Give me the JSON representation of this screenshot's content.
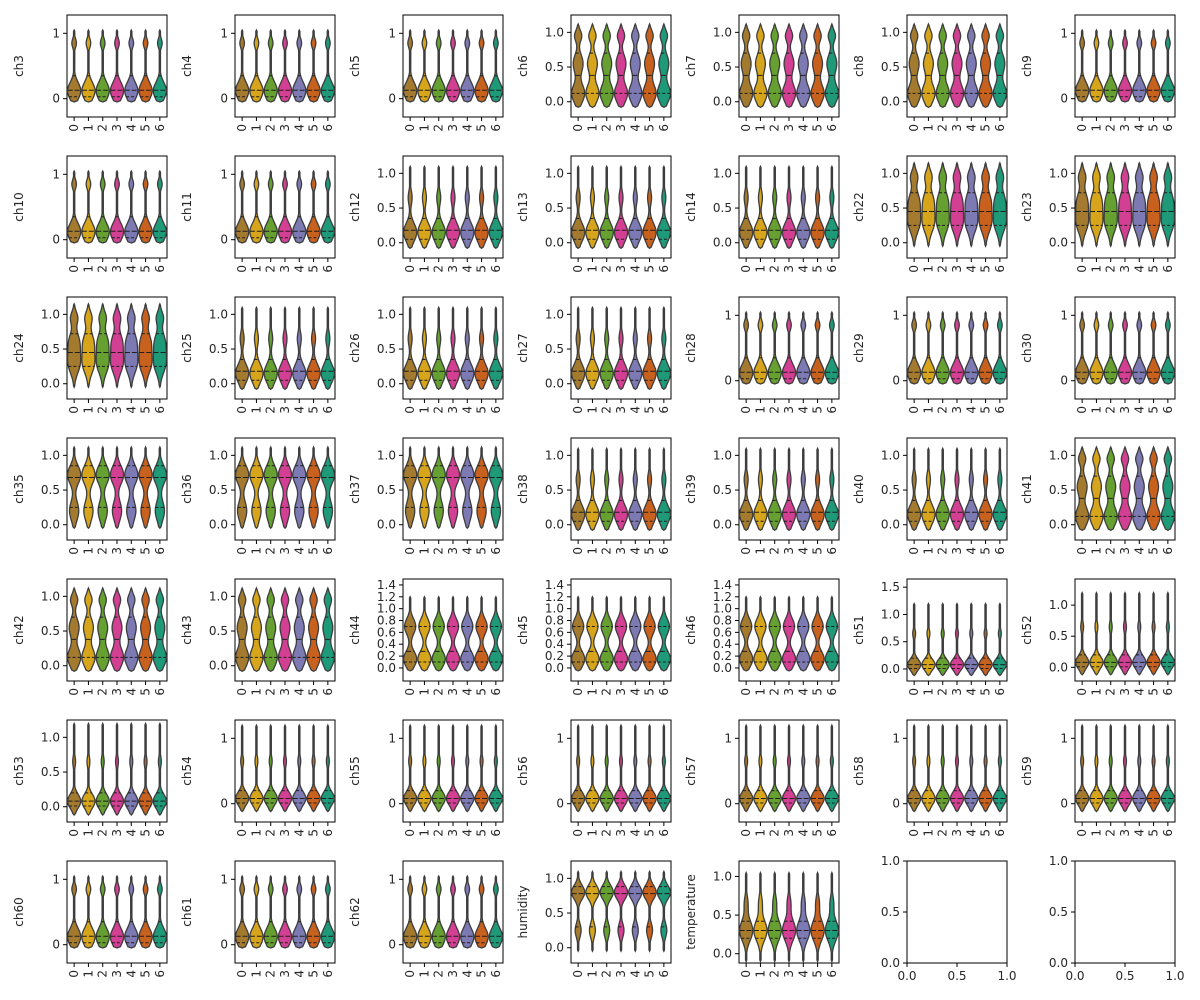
{
  "figure_size": [
    1200,
    1000
  ],
  "palette": [
    "#a47a2e",
    "#d6a51c",
    "#66a030",
    "#d33f92",
    "#7c79b3",
    "#c7611d",
    "#1f9a79"
  ],
  "chart_data": {
    "type": "violin",
    "layout": {
      "rows": 7,
      "cols": 7
    },
    "categories": [
      "0",
      "1",
      "2",
      "3",
      "4",
      "5",
      "6"
    ],
    "panels": [
      {
        "ylabel": "ch3",
        "ylim": [
          -0.28,
          1.28
        ],
        "yticks": [
          0,
          1
        ],
        "profile": "A"
      },
      {
        "ylabel": "ch4",
        "ylim": [
          -0.28,
          1.28
        ],
        "yticks": [
          0,
          1
        ],
        "profile": "A"
      },
      {
        "ylabel": "ch5",
        "ylim": [
          -0.28,
          1.28
        ],
        "yticks": [
          0,
          1
        ],
        "profile": "A"
      },
      {
        "ylabel": "ch6",
        "ylim": [
          -0.22,
          1.25
        ],
        "yticks": [
          0.0,
          0.5,
          1.0
        ],
        "profile": "B"
      },
      {
        "ylabel": "ch7",
        "ylim": [
          -0.22,
          1.25
        ],
        "yticks": [
          0.0,
          0.5,
          1.0
        ],
        "profile": "B"
      },
      {
        "ylabel": "ch8",
        "ylim": [
          -0.22,
          1.25
        ],
        "yticks": [
          0.0,
          0.5,
          1.0
        ],
        "profile": "B"
      },
      {
        "ylabel": "ch9",
        "ylim": [
          -0.28,
          1.28
        ],
        "yticks": [
          0,
          1
        ],
        "profile": "A"
      },
      {
        "ylabel": "ch10",
        "ylim": [
          -0.28,
          1.28
        ],
        "yticks": [
          0,
          1
        ],
        "profile": "A"
      },
      {
        "ylabel": "ch11",
        "ylim": [
          -0.28,
          1.28
        ],
        "yticks": [
          0,
          1
        ],
        "profile": "A"
      },
      {
        "ylabel": "ch12",
        "ylim": [
          -0.22,
          1.25
        ],
        "yticks": [
          0.0,
          0.5,
          1.0
        ],
        "profile": "C"
      },
      {
        "ylabel": "ch13",
        "ylim": [
          -0.22,
          1.25
        ],
        "yticks": [
          0.0,
          0.5,
          1.0
        ],
        "profile": "C"
      },
      {
        "ylabel": "ch14",
        "ylim": [
          -0.22,
          1.25
        ],
        "yticks": [
          0.0,
          0.5,
          1.0
        ],
        "profile": "C"
      },
      {
        "ylabel": "ch22",
        "ylim": [
          -0.22,
          1.25
        ],
        "yticks": [
          0.0,
          0.5,
          1.0
        ],
        "profile": "D"
      },
      {
        "ylabel": "ch23",
        "ylim": [
          -0.22,
          1.25
        ],
        "yticks": [
          0.0,
          0.5,
          1.0
        ],
        "profile": "D"
      },
      {
        "ylabel": "ch24",
        "ylim": [
          -0.22,
          1.25
        ],
        "yticks": [
          0.0,
          0.5,
          1.0
        ],
        "profile": "D"
      },
      {
        "ylabel": "ch25",
        "ylim": [
          -0.22,
          1.25
        ],
        "yticks": [
          0.0,
          0.5,
          1.0
        ],
        "profile": "C"
      },
      {
        "ylabel": "ch26",
        "ylim": [
          -0.22,
          1.25
        ],
        "yticks": [
          0.0,
          0.5,
          1.0
        ],
        "profile": "C"
      },
      {
        "ylabel": "ch27",
        "ylim": [
          -0.22,
          1.25
        ],
        "yticks": [
          0.0,
          0.5,
          1.0
        ],
        "profile": "C"
      },
      {
        "ylabel": "ch28",
        "ylim": [
          -0.28,
          1.28
        ],
        "yticks": [
          0,
          1
        ],
        "profile": "A"
      },
      {
        "ylabel": "ch29",
        "ylim": [
          -0.28,
          1.28
        ],
        "yticks": [
          0,
          1
        ],
        "profile": "A"
      },
      {
        "ylabel": "ch30",
        "ylim": [
          -0.28,
          1.28
        ],
        "yticks": [
          0,
          1
        ],
        "profile": "A"
      },
      {
        "ylabel": "ch35",
        "ylim": [
          -0.22,
          1.25
        ],
        "yticks": [
          0.0,
          0.5,
          1.0
        ],
        "profile": "E"
      },
      {
        "ylabel": "ch36",
        "ylim": [
          -0.22,
          1.25
        ],
        "yticks": [
          0.0,
          0.5,
          1.0
        ],
        "profile": "E"
      },
      {
        "ylabel": "ch37",
        "ylim": [
          -0.22,
          1.25
        ],
        "yticks": [
          0.0,
          0.5,
          1.0
        ],
        "profile": "E"
      },
      {
        "ylabel": "ch38",
        "ylim": [
          -0.22,
          1.25
        ],
        "yticks": [
          0.0,
          0.5,
          1.0
        ],
        "profile": "C"
      },
      {
        "ylabel": "ch39",
        "ylim": [
          -0.22,
          1.25
        ],
        "yticks": [
          0.0,
          0.5,
          1.0
        ],
        "profile": "C"
      },
      {
        "ylabel": "ch40",
        "ylim": [
          -0.22,
          1.25
        ],
        "yticks": [
          0.0,
          0.5,
          1.0
        ],
        "profile": "C"
      },
      {
        "ylabel": "ch41",
        "ylim": [
          -0.22,
          1.25
        ],
        "yticks": [
          0.0,
          0.5,
          1.0
        ],
        "profile": "B"
      },
      {
        "ylabel": "ch42",
        "ylim": [
          -0.22,
          1.25
        ],
        "yticks": [
          0.0,
          0.5,
          1.0
        ],
        "profile": "B"
      },
      {
        "ylabel": "ch43",
        "ylim": [
          -0.22,
          1.25
        ],
        "yticks": [
          0.0,
          0.5,
          1.0
        ],
        "profile": "B"
      },
      {
        "ylabel": "ch44",
        "ylim": [
          -0.22,
          1.5
        ],
        "yticks": [
          0.0,
          0.2,
          0.4,
          0.6,
          0.8,
          1.0,
          1.2,
          1.4
        ],
        "profile": "F"
      },
      {
        "ylabel": "ch45",
        "ylim": [
          -0.22,
          1.5
        ],
        "yticks": [
          0.0,
          0.2,
          0.4,
          0.6,
          0.8,
          1.0,
          1.2,
          1.4
        ],
        "profile": "F"
      },
      {
        "ylabel": "ch46",
        "ylim": [
          -0.22,
          1.5
        ],
        "yticks": [
          0.0,
          0.2,
          0.4,
          0.6,
          0.8,
          1.0,
          1.2,
          1.4
        ],
        "profile": "F"
      },
      {
        "ylabel": "ch51",
        "ylim": [
          -0.22,
          1.65
        ],
        "yticks": [
          0.0,
          0.5,
          1.0,
          1.5
        ],
        "profile": "G"
      },
      {
        "ylabel": "ch52",
        "ylim": [
          -0.22,
          1.42
        ],
        "yticks": [
          0.0,
          0.5,
          1.0
        ],
        "profile": "G"
      },
      {
        "ylabel": "ch53",
        "ylim": [
          -0.22,
          1.25
        ],
        "yticks": [
          0.0,
          0.5,
          1.0
        ],
        "profile": "G"
      },
      {
        "ylabel": "ch54",
        "ylim": [
          -0.28,
          1.28
        ],
        "yticks": [
          0,
          1
        ],
        "profile": "G"
      },
      {
        "ylabel": "ch55",
        "ylim": [
          -0.28,
          1.28
        ],
        "yticks": [
          0,
          1
        ],
        "profile": "G"
      },
      {
        "ylabel": "ch56",
        "ylim": [
          -0.28,
          1.28
        ],
        "yticks": [
          0,
          1
        ],
        "profile": "G"
      },
      {
        "ylabel": "ch57",
        "ylim": [
          -0.28,
          1.28
        ],
        "yticks": [
          0,
          1
        ],
        "profile": "G"
      },
      {
        "ylabel": "ch58",
        "ylim": [
          -0.28,
          1.28
        ],
        "yticks": [
          0,
          1
        ],
        "profile": "G"
      },
      {
        "ylabel": "ch59",
        "ylim": [
          -0.28,
          1.28
        ],
        "yticks": [
          0,
          1
        ],
        "profile": "G"
      },
      {
        "ylabel": "ch60",
        "ylim": [
          -0.28,
          1.28
        ],
        "yticks": [
          0,
          1
        ],
        "profile": "A"
      },
      {
        "ylabel": "ch61",
        "ylim": [
          -0.28,
          1.28
        ],
        "yticks": [
          0,
          1
        ],
        "profile": "A"
      },
      {
        "ylabel": "ch62",
        "ylim": [
          -0.28,
          1.28
        ],
        "yticks": [
          0,
          1
        ],
        "profile": "A"
      },
      {
        "ylabel": "humidity",
        "ylim": [
          -0.22,
          1.25
        ],
        "yticks": [
          0.0,
          0.5,
          1.0
        ],
        "profile": "H"
      },
      {
        "ylabel": "temperature",
        "ylim": [
          -0.12,
          1.2
        ],
        "yticks": [
          0.0,
          0.5,
          1.0
        ],
        "profile": "I"
      },
      {
        "ylabel": "",
        "ylim": [
          0.0,
          1.0
        ],
        "yticks": [
          0.0,
          0.5,
          1.0
        ],
        "xlim": [
          0.0,
          1.0
        ],
        "xticks": [
          0.0,
          0.5,
          1.0
        ],
        "profile": "empty"
      },
      {
        "ylabel": "",
        "ylim": [
          0.0,
          1.0
        ],
        "yticks": [
          0.0,
          0.5,
          1.0
        ],
        "xlim": [
          0.0,
          1.0
        ],
        "xticks": [
          0.0,
          0.5,
          1.0
        ],
        "profile": "empty"
      }
    ],
    "profiles": {
      "A": {
        "min": -0.05,
        "max": 1.05,
        "peaks": [
          [
            0.12,
            0.13,
            1.0
          ],
          [
            0.85,
            0.07,
            0.35
          ]
        ],
        "quartiles": [
          0.03,
          0.13,
          0.35
        ]
      },
      "B": {
        "min": -0.08,
        "max": 1.12,
        "peaks": [
          [
            0.12,
            0.13,
            1.0
          ],
          [
            0.55,
            0.13,
            0.75
          ],
          [
            0.95,
            0.08,
            0.55
          ]
        ],
        "quartiles": [
          0.12,
          0.38,
          0.7
        ]
      },
      "C": {
        "min": -0.08,
        "max": 1.1,
        "peaks": [
          [
            0.15,
            0.13,
            1.0
          ],
          [
            0.65,
            0.1,
            0.3
          ]
        ],
        "quartiles": [
          0.05,
          0.18,
          0.35
        ]
      },
      "D": {
        "min": -0.05,
        "max": 1.15,
        "peaks": [
          [
            0.3,
            0.15,
            1.0
          ],
          [
            0.6,
            0.14,
            0.85
          ],
          [
            0.95,
            0.09,
            0.6
          ]
        ],
        "quartiles": [
          0.25,
          0.45,
          0.72
        ]
      },
      "E": {
        "min": -0.05,
        "max": 1.12,
        "peaks": [
          [
            0.2,
            0.14,
            0.7
          ],
          [
            0.72,
            0.13,
            1.0
          ]
        ],
        "quartiles": [
          0.25,
          0.68,
          0.85
        ]
      },
      "F": {
        "min": -0.05,
        "max": 1.2,
        "peaks": [
          [
            0.15,
            0.13,
            1.0
          ],
          [
            0.7,
            0.13,
            0.85
          ]
        ],
        "quartiles": [
          0.1,
          0.28,
          0.7
        ]
      },
      "G": {
        "min": -0.12,
        "max": 1.2,
        "peaks": [
          [
            0.08,
            0.1,
            1.0
          ],
          [
            0.65,
            0.08,
            0.22
          ]
        ],
        "quartiles": [
          0.01,
          0.08,
          0.2
        ]
      },
      "H": {
        "min": -0.05,
        "max": 1.1,
        "peaks": [
          [
            0.25,
            0.1,
            0.45
          ],
          [
            0.8,
            0.1,
            1.0
          ]
        ],
        "quartiles": [
          0.3,
          0.78,
          0.88
        ]
      },
      "I": {
        "min": -0.1,
        "max": 1.05,
        "peaks": [
          [
            0.3,
            0.13,
            1.0
          ],
          [
            0.65,
            0.1,
            0.28
          ]
        ],
        "quartiles": [
          0.2,
          0.3,
          0.42
        ]
      }
    }
  }
}
